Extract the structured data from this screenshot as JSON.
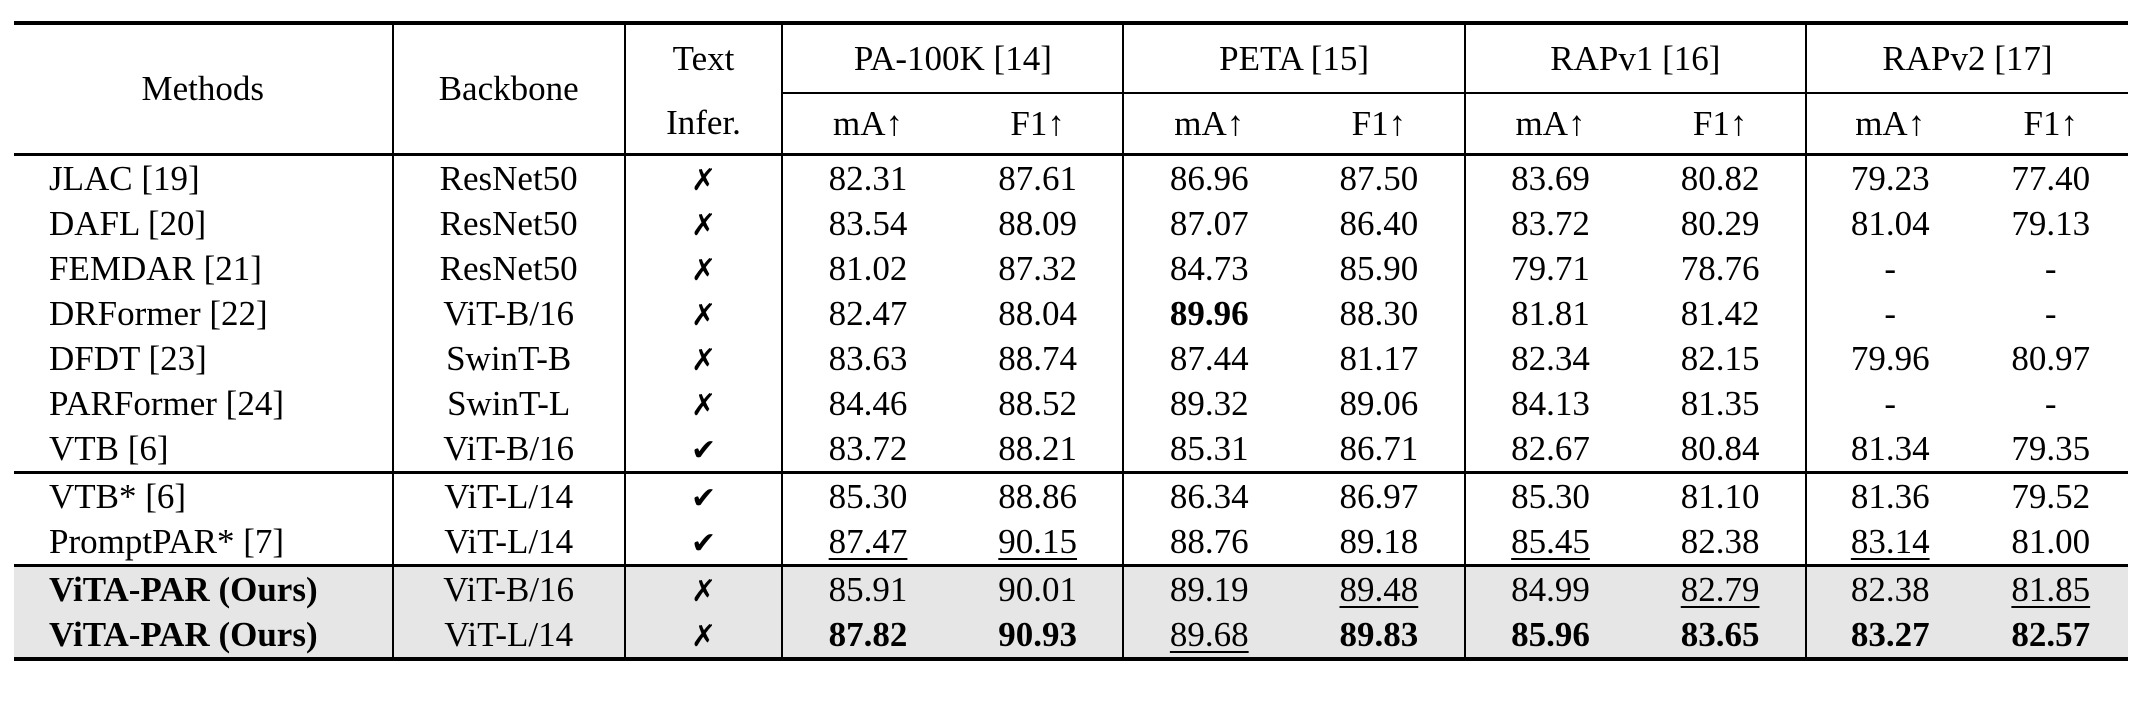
{
  "header": {
    "methods": "Methods",
    "backbone": "Backbone",
    "text_infer_line1": "Text",
    "text_infer_line2": "Infer.",
    "datasets": [
      "PA-100K [14]",
      "PETA [15]",
      "RAPv1 [16]",
      "RAPv2 [17]"
    ],
    "metric_ma": "mA↑",
    "metric_f1": "F1↑"
  },
  "groups": [
    [
      {
        "method": "JLAC [19]",
        "backbone": "ResNet50",
        "infer": "✗",
        "vals": [
          "82.31",
          "87.61",
          "86.96",
          "87.50",
          "83.69",
          "80.82",
          "79.23",
          "77.40"
        ]
      },
      {
        "method": "DAFL [20]",
        "backbone": "ResNet50",
        "infer": "✗",
        "vals": [
          "83.54",
          "88.09",
          "87.07",
          "86.40",
          "83.72",
          "80.29",
          "81.04",
          "79.13"
        ]
      },
      {
        "method": "FEMDAR [21]",
        "backbone": "ResNet50",
        "infer": "✗",
        "vals": [
          "81.02",
          "87.32",
          "84.73",
          "85.90",
          "79.71",
          "78.76",
          "-",
          "-"
        ]
      },
      {
        "method": "DRFormer [22]",
        "backbone": "ViT-B/16",
        "infer": "✗",
        "vals": [
          "82.47",
          "88.04",
          "89.96",
          "88.30",
          "81.81",
          "81.42",
          "-",
          "-"
        ]
      },
      {
        "method": "DFDT [23]",
        "backbone": "SwinT-B",
        "infer": "✗",
        "vals": [
          "83.63",
          "88.74",
          "87.44",
          "81.17",
          "82.34",
          "82.15",
          "79.96",
          "80.97"
        ]
      },
      {
        "method": "PARFormer [24]",
        "backbone": "SwinT-L",
        "infer": "✗",
        "vals": [
          "84.46",
          "88.52",
          "89.32",
          "89.06",
          "84.13",
          "81.35",
          "-",
          "-"
        ]
      },
      {
        "method": "VTB [6]",
        "backbone": "ViT-B/16",
        "infer": "✔",
        "vals": [
          "83.72",
          "88.21",
          "85.31",
          "86.71",
          "82.67",
          "80.84",
          "81.34",
          "79.35"
        ]
      }
    ],
    [
      {
        "method": "VTB* [6]",
        "backbone": "ViT-L/14",
        "infer": "✔",
        "vals": [
          "85.30",
          "88.86",
          "86.34",
          "86.97",
          "85.30",
          "81.10",
          "81.36",
          "79.52"
        ]
      },
      {
        "method": "PromptPAR* [7]",
        "backbone": "ViT-L/14",
        "infer": "✔",
        "vals": [
          "87.47",
          "90.15",
          "88.76",
          "89.18",
          "85.45",
          "82.38",
          "83.14",
          "81.00"
        ]
      }
    ],
    [
      {
        "method": "ViTA-PAR (Ours)",
        "backbone": "ViT-B/16",
        "infer": "✗",
        "vals": [
          "85.91",
          "90.01",
          "89.19",
          "89.48",
          "84.99",
          "82.79",
          "82.38",
          "81.85"
        ]
      },
      {
        "method": "ViTA-PAR (Ours)",
        "backbone": "ViT-L/14",
        "infer": "✗",
        "vals": [
          "87.82",
          "90.93",
          "89.68",
          "89.83",
          "85.96",
          "83.65",
          "83.27",
          "82.57"
        ]
      }
    ]
  ],
  "bold_cells": [
    [
      0,
      3,
      2
    ],
    [
      2,
      1,
      0
    ],
    [
      2,
      1,
      1
    ],
    [
      2,
      1,
      3
    ],
    [
      2,
      1,
      4
    ],
    [
      2,
      1,
      5
    ],
    [
      2,
      1,
      6
    ],
    [
      2,
      1,
      7
    ]
  ],
  "underlined_cells": [
    [
      1,
      1,
      0
    ],
    [
      1,
      1,
      1
    ],
    [
      1,
      1,
      4
    ],
    [
      1,
      1,
      6
    ],
    [
      2,
      0,
      3
    ],
    [
      2,
      0,
      5
    ],
    [
      2,
      0,
      7
    ],
    [
      2,
      1,
      2
    ]
  ],
  "bold_methods": [
    [
      2,
      0
    ],
    [
      2,
      1
    ]
  ],
  "colors": {
    "highlight_row_bg": "#e6e6e6",
    "rule": "#000000"
  }
}
